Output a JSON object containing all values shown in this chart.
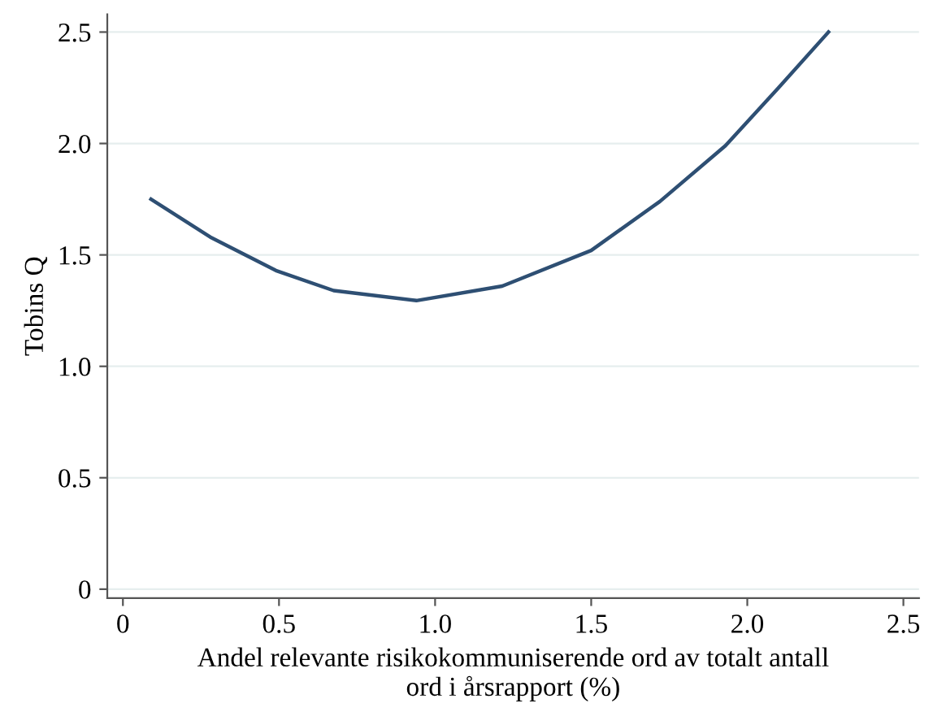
{
  "chart_data": {
    "type": "line",
    "xlabel": "Andel relevante risikokommuniserende ord av totalt antall\nord i årsrapport (%)",
    "ylabel": "Tobins Q",
    "series": [
      {
        "color": "#2e4f73",
        "x": [
          0.09,
          0.28,
          0.49,
          0.675,
          0.94,
          1.215,
          1.5,
          1.72,
          1.93,
          2.1,
          2.26
        ],
        "values": [
          1.75,
          1.58,
          1.43,
          1.34,
          1.295,
          1.36,
          1.52,
          1.74,
          1.99,
          2.25,
          2.5
        ]
      }
    ],
    "xlim": [
      -0.05,
      2.55
    ],
    "ylim": [
      -0.04,
      2.58
    ],
    "xticks": [
      {
        "value": 0,
        "label": "0"
      },
      0.5,
      {
        "value": 1,
        "label": "1.0"
      },
      1.5,
      {
        "value": 2,
        "label": "2.0"
      },
      2.5
    ],
    "yticks": [
      {
        "value": 0,
        "label": "0"
      },
      0.5,
      {
        "value": 1,
        "label": "1.0"
      },
      1.5,
      {
        "value": 2,
        "label": "2.0"
      },
      2.5
    ],
    "grid": "y",
    "marker": "none",
    "line_style": "solid"
  }
}
